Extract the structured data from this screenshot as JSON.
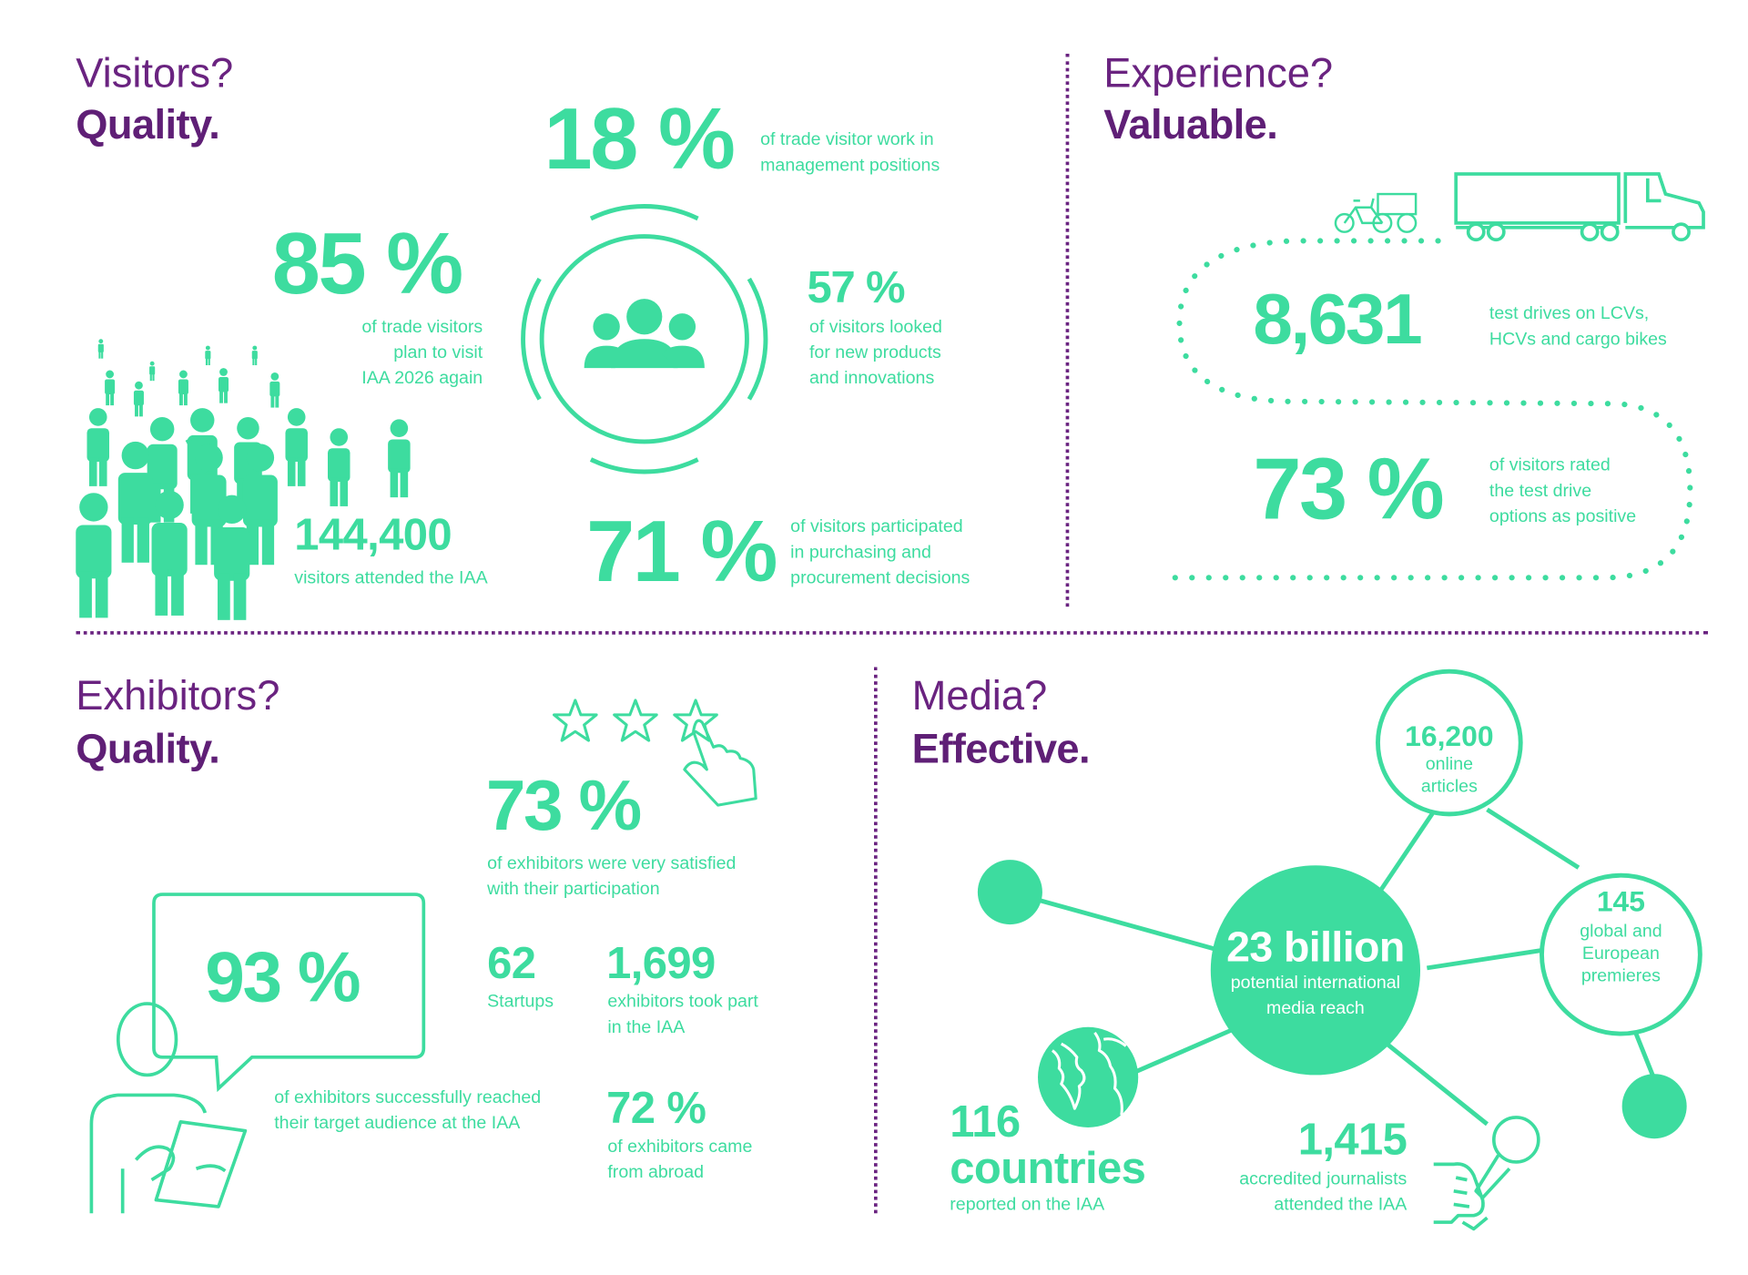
{
  "colors": {
    "accent": "#3ddc9f",
    "heading": "#6a2380",
    "background": "#ffffff"
  },
  "visitors": {
    "question": "Visitors?",
    "answer": "Quality.",
    "management": {
      "value": "18 %",
      "label": "of trade visitor work in\nmanagement positions"
    },
    "return": {
      "value": "85 %",
      "label": "of trade visitors\nplan to visit\nIAA 2026 again"
    },
    "products": {
      "value": "57 %",
      "label": "of visitors looked\nfor new products\nand innovations"
    },
    "attendance": {
      "value": "144,400",
      "label": "visitors attended the IAA"
    },
    "purchasing": {
      "value": "71 %",
      "label": "of visitors participated\nin purchasing and\nprocurement decisions"
    },
    "icons": [
      "crowd-icon",
      "group-icon"
    ]
  },
  "experience": {
    "question": "Experience?",
    "answer": "Valuable.",
    "test_drives": {
      "value": "8,631",
      "label": "test drives on LCVs,\nHCVs and cargo bikes"
    },
    "rating": {
      "value": "73 %",
      "label": "of visitors rated\nthe test drive\noptions as positive"
    },
    "icons": [
      "cargo-bike-icon",
      "truck-icon"
    ]
  },
  "exhibitors": {
    "question": "Exhibitors?",
    "answer": "Quality.",
    "satisfaction": {
      "value": "73 %",
      "label": "of exhibitors were very satisfied\nwith their participation"
    },
    "audience": {
      "value": "93 %",
      "label": "of exhibitors successfully reached\ntheir target audience at the IAA"
    },
    "startups": {
      "value": "62",
      "label": "Startups"
    },
    "exhibitor_count": {
      "value": "1,699",
      "label": "exhibitors took part\nin the IAA"
    },
    "abroad": {
      "value": "72 %",
      "label": "of exhibitors came\nfrom abroad"
    },
    "icons": [
      "rating-stars-icon",
      "pointing-hand-icon",
      "person-tablet-icon",
      "speech-bubble-icon"
    ]
  },
  "media": {
    "question": "Media?",
    "answer": "Effective.",
    "reach": {
      "value": "23 billion",
      "label": "potential international\nmedia reach"
    },
    "articles": {
      "value": "16,200",
      "label": "online\narticles"
    },
    "premieres": {
      "value": "145",
      "label": "global and\nEuropean\npremieres"
    },
    "countries": {
      "value": "116",
      "value2": "countries",
      "label": "reported on the IAA"
    },
    "journalists": {
      "value": "1,415",
      "label": "accredited journalists\nattended the IAA"
    },
    "icons": [
      "globe-icon",
      "microphone-icon"
    ]
  }
}
